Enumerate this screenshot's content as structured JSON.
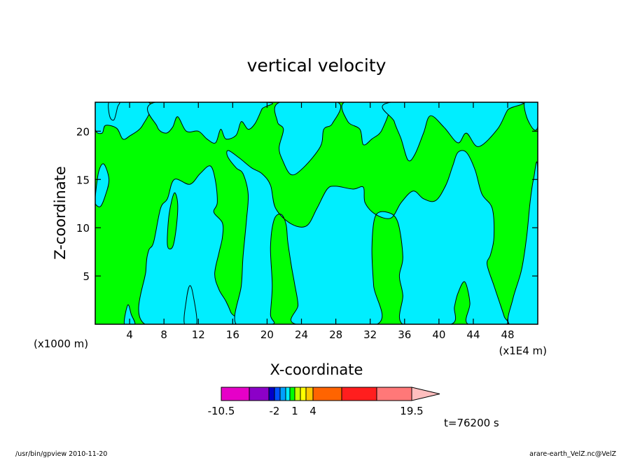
{
  "chart_data": {
    "type": "heatmap",
    "title": "vertical velocity",
    "xlabel": "X-coordinate",
    "ylabel": "Z-coordinate",
    "x_unit_left": "(x1000 m)",
    "x_unit_right": "(x1E4 m)",
    "xlim": [
      0,
      51.5
    ],
    "ylim": [
      0,
      23
    ],
    "x_ticks": [
      4,
      8,
      12,
      16,
      20,
      24,
      28,
      32,
      36,
      40,
      44,
      48
    ],
    "x_tick_labels": [
      "4",
      "8",
      "12",
      "16",
      "20",
      "24",
      "28",
      "32",
      "36",
      "40",
      "44",
      "48"
    ],
    "y_ticks": [
      5,
      10,
      15,
      20
    ],
    "y_tick_labels": [
      "5",
      "10",
      "15",
      "20"
    ],
    "background_color": "#00ff00",
    "regions": [
      {
        "color": "#00eeff",
        "points": [
          [
            0,
            20.2
          ],
          [
            0.8,
            19.8
          ],
          [
            1.2,
            20.6
          ],
          [
            2.5,
            20.3
          ],
          [
            3.2,
            19.2
          ],
          [
            4,
            19.5
          ],
          [
            5.5,
            20.6
          ],
          [
            6.2,
            23
          ],
          [
            0,
            23
          ]
        ]
      },
      {
        "color": "#00eeff",
        "points": [
          [
            1.6,
            23
          ],
          [
            1.7,
            21.5
          ],
          [
            2.2,
            21.2
          ],
          [
            2.6,
            22.5
          ],
          [
            2.8,
            23
          ]
        ]
      },
      {
        "color": "#00eeff",
        "points": [
          [
            7,
            23
          ],
          [
            7.2,
            20.5
          ],
          [
            8.2,
            19.8
          ],
          [
            9,
            20.4
          ],
          [
            9.6,
            21.5
          ],
          [
            10.6,
            20
          ],
          [
            12,
            20
          ],
          [
            13,
            19.2
          ],
          [
            14,
            18.8
          ],
          [
            14.6,
            20.2
          ],
          [
            15.2,
            19.2
          ],
          [
            16.4,
            19.6
          ],
          [
            17,
            21
          ],
          [
            17.8,
            20.2
          ],
          [
            18.6,
            20.8
          ],
          [
            19.4,
            22.3
          ],
          [
            19.8,
            23
          ]
        ]
      },
      {
        "color": "#00eeff",
        "points": [
          [
            21.5,
            23
          ],
          [
            21.2,
            21
          ],
          [
            21.9,
            20.2
          ],
          [
            21.4,
            18.3
          ],
          [
            21.8,
            17
          ],
          [
            22.8,
            15.5
          ],
          [
            24.2,
            16.2
          ],
          [
            26.2,
            18.4
          ],
          [
            26.6,
            20.2
          ],
          [
            27.6,
            20.8
          ],
          [
            28.2,
            23
          ]
        ]
      },
      {
        "color": "#00eeff",
        "points": [
          [
            29,
            23
          ],
          [
            29.4,
            21
          ],
          [
            30.8,
            20.2
          ],
          [
            31.2,
            18.6
          ],
          [
            32.2,
            19.2
          ],
          [
            33.4,
            20.2
          ],
          [
            34,
            23
          ]
        ]
      },
      {
        "color": "#00eeff",
        "points": [
          [
            34.4,
            23
          ],
          [
            34.8,
            21
          ],
          [
            35.6,
            19.2
          ],
          [
            36.4,
            17
          ],
          [
            37.2,
            17.6
          ],
          [
            38.2,
            19.8
          ],
          [
            39,
            21.6
          ],
          [
            40.6,
            20.4
          ],
          [
            42.2,
            18.8
          ],
          [
            43.2,
            19.8
          ],
          [
            44.6,
            18.4
          ],
          [
            46.8,
            20.2
          ],
          [
            48,
            22.2
          ],
          [
            49,
            23
          ]
        ]
      },
      {
        "color": "#00eeff",
        "points": [
          [
            50,
            23
          ],
          [
            50.2,
            21.5
          ],
          [
            51,
            20.2
          ],
          [
            51.5,
            20.5
          ],
          [
            51.5,
            23
          ]
        ]
      },
      {
        "color": "#00eeff",
        "points": [
          [
            0,
            13.2
          ],
          [
            0.4,
            15.8
          ],
          [
            1,
            16.6
          ],
          [
            1.6,
            15
          ],
          [
            1.2,
            13.4
          ],
          [
            0.6,
            12.2
          ],
          [
            0,
            12.5
          ]
        ]
      },
      {
        "color": "#00eeff",
        "points": [
          [
            3.4,
            0
          ],
          [
            3.8,
            2
          ],
          [
            4.2,
            1
          ],
          [
            4.6,
            0
          ]
        ]
      },
      {
        "color": "#00eeff",
        "points": [
          [
            5.8,
            0
          ],
          [
            5.9,
            5.6
          ],
          [
            6.2,
            7.6
          ],
          [
            6.8,
            8.5
          ],
          [
            7.6,
            12
          ],
          [
            8.4,
            13
          ],
          [
            9.2,
            15
          ],
          [
            11,
            14.5
          ],
          [
            12.2,
            15.6
          ],
          [
            13.4,
            16.4
          ],
          [
            14,
            14.8
          ],
          [
            14.2,
            12.6
          ],
          [
            13.8,
            11.6
          ],
          [
            14.8,
            10.5
          ],
          [
            14.8,
            9
          ],
          [
            14.4,
            7.4
          ],
          [
            13.9,
            5.2
          ],
          [
            14.4,
            3.6
          ],
          [
            15.2,
            2.4
          ],
          [
            15.8,
            1.2
          ],
          [
            16.2,
            0
          ]
        ]
      },
      {
        "color": "#00eeff",
        "points": [
          [
            16.4,
            0
          ],
          [
            17,
            4
          ],
          [
            17.2,
            7
          ],
          [
            17.6,
            10.8
          ],
          [
            17.8,
            13.5
          ],
          [
            17.2,
            15.6
          ],
          [
            16.4,
            16.2
          ],
          [
            15.4,
            17.4
          ],
          [
            15.5,
            18
          ],
          [
            16.8,
            17.2
          ],
          [
            18.2,
            16.2
          ],
          [
            19.4,
            15.6
          ],
          [
            20.4,
            14.4
          ],
          [
            21,
            12
          ],
          [
            22.8,
            10.4
          ],
          [
            24.6,
            10.2
          ],
          [
            25.8,
            12
          ],
          [
            27,
            14
          ],
          [
            28,
            14.3
          ],
          [
            30,
            14
          ],
          [
            31.2,
            14.2
          ],
          [
            31.4,
            12.6
          ],
          [
            32.6,
            11.4
          ],
          [
            34.4,
            11
          ],
          [
            35.6,
            12.6
          ],
          [
            37,
            13.8
          ],
          [
            38.2,
            13
          ],
          [
            39.6,
            12.8
          ],
          [
            40.8,
            14.4
          ],
          [
            41.6,
            16.4
          ],
          [
            42.2,
            17.8
          ],
          [
            43.2,
            17.8
          ],
          [
            44.2,
            16
          ],
          [
            45,
            13.5
          ],
          [
            46.2,
            12
          ],
          [
            46.4,
            9
          ],
          [
            46,
            7.2
          ],
          [
            45.6,
            6.2
          ],
          [
            46.4,
            4
          ],
          [
            47,
            2.4
          ],
          [
            47.6,
            0.8
          ],
          [
            47.8,
            0
          ],
          [
            43.4,
            0
          ],
          [
            43.6,
            2.2
          ],
          [
            43,
            4.4
          ],
          [
            42.2,
            3.2
          ],
          [
            41.8,
            1.8
          ],
          [
            41.4,
            0
          ],
          [
            35.8,
            0
          ],
          [
            35.8,
            3
          ],
          [
            35.4,
            5
          ],
          [
            35.8,
            7
          ],
          [
            35.2,
            10.6
          ],
          [
            34,
            11.6
          ],
          [
            32.6,
            11.2
          ],
          [
            32.2,
            8
          ],
          [
            32.4,
            4
          ],
          [
            32.8,
            0
          ],
          [
            23.4,
            0
          ],
          [
            23.6,
            2
          ],
          [
            23.2,
            4.2
          ],
          [
            22.8,
            6.2
          ],
          [
            22.4,
            8.6
          ],
          [
            22.2,
            10.4
          ],
          [
            21.6,
            11.4
          ],
          [
            20.8,
            10.8
          ],
          [
            20.4,
            8
          ],
          [
            20.6,
            4
          ],
          [
            20.4,
            1
          ],
          [
            20.6,
            0
          ]
        ]
      },
      {
        "color": "#00eeff",
        "points": [
          [
            48.2,
            0
          ],
          [
            48.6,
            2.6
          ],
          [
            49.6,
            5.6
          ],
          [
            50.2,
            9
          ],
          [
            50.6,
            12.6
          ],
          [
            51,
            15
          ],
          [
            51.5,
            15.8
          ],
          [
            51.5,
            0
          ]
        ]
      },
      {
        "color": "#00eeff",
        "points": [
          [
            10.4,
            0
          ],
          [
            10.6,
            2.5
          ],
          [
            11,
            4
          ],
          [
            11.4,
            3
          ],
          [
            11.8,
            0
          ]
        ]
      },
      {
        "color": "#00ff00",
        "points": [
          [
            8.4,
            8.2
          ],
          [
            8.6,
            11.4
          ],
          [
            9.2,
            13.6
          ],
          [
            9.6,
            12.4
          ],
          [
            9.4,
            9.8
          ],
          [
            9,
            8
          ]
        ]
      }
    ]
  },
  "colorbar": {
    "labels": [
      "-10.5",
      "-2",
      "1",
      "4",
      "19.5"
    ],
    "colors": [
      "#e600c8",
      "#8c00c8",
      "#0000c8",
      "#0050ff",
      "#00a0ff",
      "#00eeff",
      "#00ff00",
      "#c8ff00",
      "#ffff00",
      "#ffc800",
      "#ff6400",
      "#ff1e1e",
      "#ff7878",
      "#ffbebe"
    ]
  },
  "time_label": "t=76200 s",
  "footer": {
    "left": "/usr/bin/gpview   2010-11-20",
    "right": "arare-earth_VelZ.nc@VelZ"
  }
}
